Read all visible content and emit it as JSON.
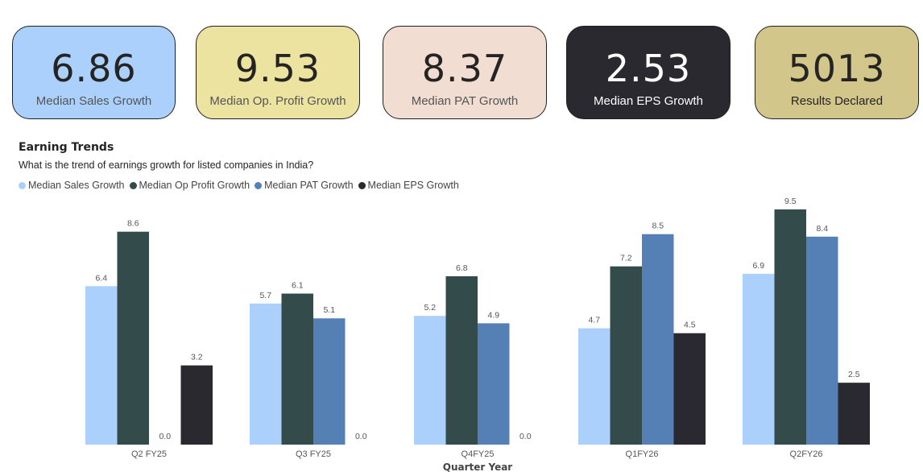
{
  "cards": [
    {
      "value": "6.86",
      "label": "Median Sales Growth",
      "bg": "#abd0fc",
      "style": "light"
    },
    {
      "value": "9.53",
      "label": "Median Op. Profit Growth",
      "bg": "#ece3a0",
      "style": "light"
    },
    {
      "value": "8.37",
      "label": "Median PAT Growth",
      "bg": "#f2ddd3",
      "style": "light"
    },
    {
      "value": "2.53",
      "label": "Median EPS Growth",
      "bg": "#2a2930",
      "style": "dark"
    },
    {
      "value": "5013",
      "label": "Results Declared",
      "bg": "#d2c68b",
      "style": "olive"
    }
  ],
  "chart_data": {
    "type": "bar",
    "title": "Earning Trends",
    "subtitle": "What is the trend of earnings growth for listed companies in India?",
    "xlabel": "Quarter Year",
    "ylabel": "",
    "categories": [
      "Q2 FY25",
      "Q3 FY25",
      "Q4FY25",
      "Q1FY26",
      "Q2FY26"
    ],
    "series": [
      {
        "name": "Median Sales Growth",
        "color": "#abd0fc",
        "values": [
          6.4,
          5.7,
          5.2,
          4.7,
          6.9
        ]
      },
      {
        "name": "Median Op Profit Growth",
        "color": "#344b4b",
        "values": [
          8.6,
          6.1,
          6.8,
          7.2,
          9.5
        ]
      },
      {
        "name": "Median PAT Growth",
        "color": "#5480b5",
        "values": [
          0.0,
          5.1,
          4.9,
          8.5,
          8.4
        ]
      },
      {
        "name": "Median EPS Growth",
        "color": "#2a2930",
        "values": [
          3.2,
          0.0,
          0.0,
          4.5,
          2.5
        ]
      }
    ],
    "ylim": [
      0,
      9.5
    ],
    "legend": "top-left",
    "grid": false
  }
}
